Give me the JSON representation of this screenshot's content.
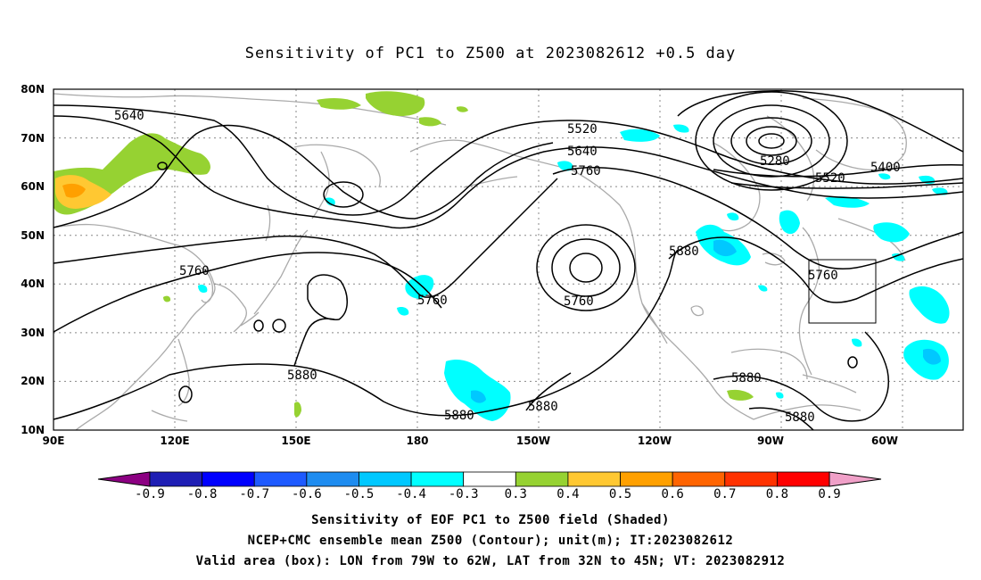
{
  "title": "Sensitivity of PC1 to Z500 at 2023082612 +0.5 day",
  "lat_labels": [
    "80N",
    "70N",
    "60N",
    "50N",
    "40N",
    "30N",
    "20N",
    "10N"
  ],
  "lon_labels": [
    "90E",
    "120E",
    "150E",
    "180",
    "150W",
    "120W",
    "90W",
    "60W"
  ],
  "contour_labels": [
    "5640",
    "5520",
    "5640",
    "5760",
    "5280",
    "5400",
    "5520",
    "5760",
    "5880",
    "5760",
    "5760",
    "5760",
    "5880",
    "5880",
    "5880",
    "5880",
    "5880"
  ],
  "colorbar": {
    "labels": [
      "-0.9",
      "-0.8",
      "-0.7",
      "-0.6",
      "-0.5",
      "-0.4",
      "-0.3",
      "0.3",
      "0.4",
      "0.5",
      "0.6",
      "0.7",
      "0.8",
      "0.9"
    ],
    "colors": [
      "#8c0082",
      "#1e1eb4",
      "#0000ff",
      "#1e5aff",
      "#1e8cf0",
      "#00c8ff",
      "#00ffff",
      "#ffffff",
      "#96d232",
      "#ffc832",
      "#ffa000",
      "#ff6400",
      "#ff3200",
      "#ff0000",
      "#f0a0c8"
    ]
  },
  "valid_box": {
    "lon_west": -79,
    "lon_east": -62,
    "lat_south": 32,
    "lat_north": 45
  },
  "captions": [
    "Sensitivity of EOF PC1 to Z500 field (Shaded)",
    "NCEP+CMC ensemble mean Z500 (Contour); unit(m); IT:2023082612",
    "Valid area (box): LON from 79W to 62W, LAT from 32N to 45N; VT: 2023082912"
  ]
}
